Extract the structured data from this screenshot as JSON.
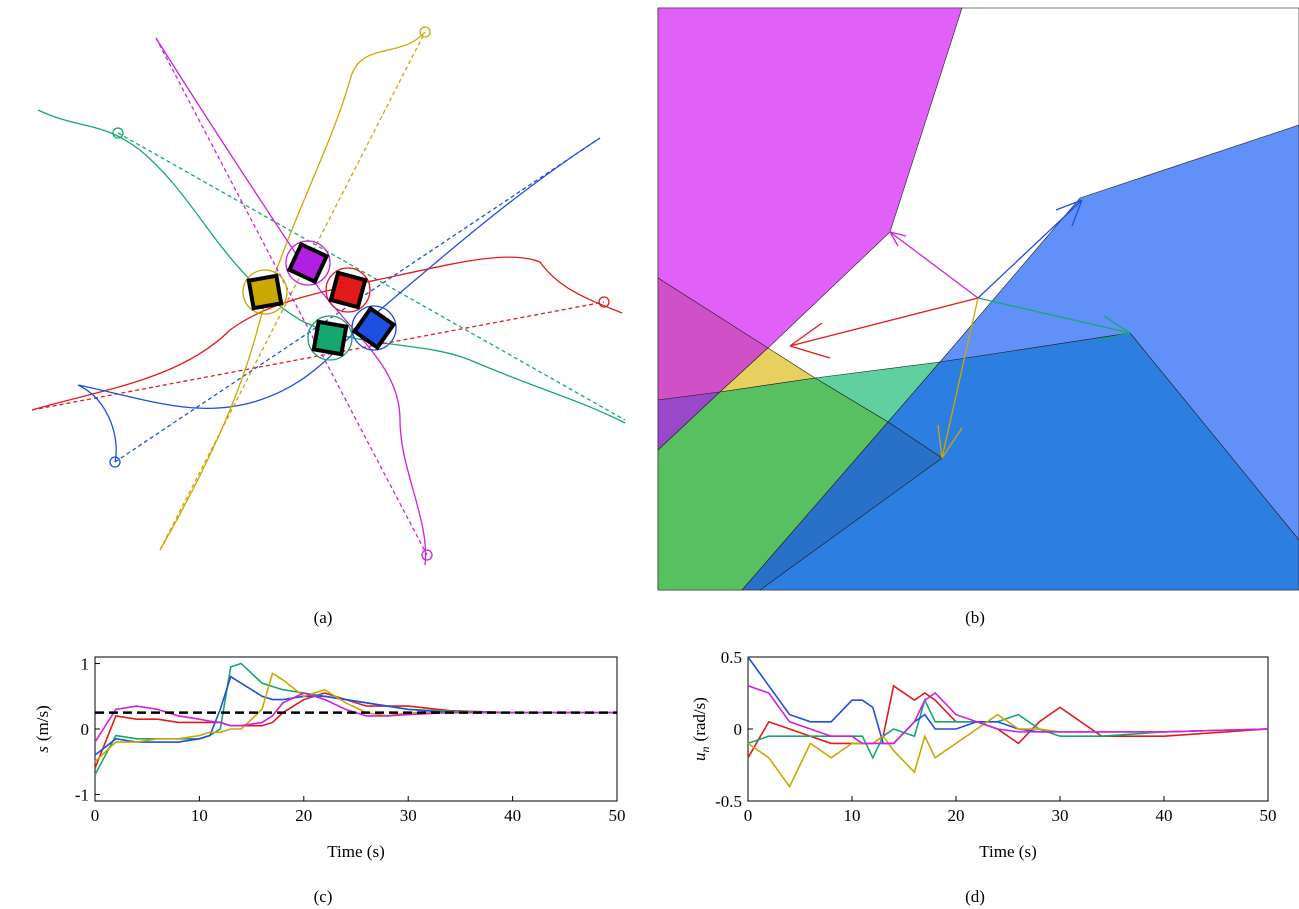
{
  "captions": [
    "(a)",
    "(b)",
    "(c)",
    "(d)"
  ],
  "chart_data": [
    {
      "type": "line",
      "xlabel": "Time (s)",
      "ylabel_symbol": "s",
      "ylabel_unit": "(m/s)",
      "x": [
        0,
        2,
        4,
        6,
        8,
        10,
        11,
        12,
        13,
        14,
        16,
        17,
        18,
        20,
        22,
        24,
        26,
        28,
        30,
        34,
        40,
        50
      ],
      "xlim": [
        0,
        50
      ],
      "xticks": [
        0,
        10,
        20,
        30,
        40,
        50
      ],
      "ylim": [
        -1.1,
        1.1
      ],
      "yticks": [
        -1,
        0,
        1
      ],
      "series": [
        {
          "color": "#e31a1c",
          "values": [
            -0.6,
            0.2,
            0.15,
            0.15,
            0.1,
            0.1,
            0.1,
            0.1,
            0.05,
            0.05,
            0.05,
            0.1,
            0.25,
            0.45,
            0.55,
            0.45,
            0.35,
            0.35,
            0.35,
            0.28,
            0.25,
            0.25
          ]
        },
        {
          "color": "#14a86e",
          "values": [
            -0.7,
            -0.1,
            -0.15,
            -0.15,
            -0.15,
            -0.15,
            -0.1,
            0.0,
            0.95,
            1.0,
            0.7,
            0.65,
            0.6,
            0.55,
            0.5,
            0.45,
            0.4,
            0.35,
            0.3,
            0.27,
            0.25,
            0.25
          ]
        },
        {
          "color": "#1f4fe0",
          "values": [
            -0.4,
            -0.15,
            -0.2,
            -0.2,
            -0.2,
            -0.15,
            -0.1,
            0.3,
            0.8,
            0.7,
            0.5,
            0.45,
            0.45,
            0.5,
            0.5,
            0.45,
            0.4,
            0.35,
            0.3,
            0.25,
            0.25,
            0.25
          ]
        },
        {
          "color": "#c9a800",
          "values": [
            -0.5,
            -0.2,
            -0.2,
            -0.15,
            -0.15,
            -0.1,
            -0.05,
            -0.05,
            0.0,
            0.0,
            0.3,
            0.85,
            0.75,
            0.5,
            0.6,
            0.4,
            0.25,
            0.2,
            0.25,
            0.25,
            0.25,
            0.25
          ]
        },
        {
          "color": "#d21fe0",
          "values": [
            -0.2,
            0.3,
            0.35,
            0.3,
            0.2,
            0.15,
            0.12,
            0.1,
            0.05,
            0.05,
            0.1,
            0.2,
            0.4,
            0.55,
            0.45,
            0.3,
            0.2,
            0.2,
            0.22,
            0.25,
            0.25,
            0.25
          ]
        },
        {
          "color": "#000000",
          "dash": true,
          "values": [
            0.25,
            0.25,
            0.25,
            0.25,
            0.25,
            0.25,
            0.25,
            0.25,
            0.25,
            0.25,
            0.25,
            0.25,
            0.25,
            0.25,
            0.25,
            0.25,
            0.25,
            0.25,
            0.25,
            0.25,
            0.25,
            0.25
          ]
        }
      ]
    },
    {
      "type": "line",
      "xlabel": "Time (s)",
      "ylabel_symbol": "u",
      "ylabel_subscript": "n",
      "ylabel_unit": "(rad/s)",
      "x": [
        0,
        2,
        4,
        6,
        8,
        10,
        11,
        12,
        13,
        14,
        16,
        17,
        18,
        20,
        22,
        24,
        26,
        28,
        30,
        34,
        40,
        50
      ],
      "xlim": [
        0,
        50
      ],
      "xticks": [
        0,
        10,
        20,
        30,
        40,
        50
      ],
      "ylim": [
        -0.5,
        0.5
      ],
      "yticks": [
        -0.5,
        0,
        0.5
      ],
      "series": [
        {
          "color": "#e31a1c",
          "values": [
            -0.2,
            0.05,
            0.0,
            -0.05,
            -0.1,
            -0.1,
            -0.1,
            -0.1,
            -0.05,
            0.3,
            0.2,
            0.25,
            0.2,
            0.05,
            0.05,
            0.0,
            -0.1,
            0.05,
            0.15,
            -0.05,
            -0.05,
            0.0
          ]
        },
        {
          "color": "#14a86e",
          "values": [
            -0.1,
            -0.05,
            -0.05,
            -0.05,
            -0.05,
            -0.05,
            -0.05,
            -0.2,
            -0.05,
            0.0,
            -0.05,
            0.2,
            0.05,
            0.05,
            0.05,
            0.05,
            0.1,
            0.0,
            -0.05,
            -0.05,
            -0.02,
            0.0
          ]
        },
        {
          "color": "#1f4fe0",
          "values": [
            0.5,
            0.3,
            0.1,
            0.05,
            0.05,
            0.2,
            0.2,
            0.15,
            -0.1,
            -0.1,
            0.05,
            0.1,
            0.0,
            0.0,
            0.05,
            0.05,
            0.0,
            -0.02,
            -0.02,
            -0.02,
            -0.02,
            0.0
          ]
        },
        {
          "color": "#c9a800",
          "values": [
            -0.1,
            -0.2,
            -0.4,
            -0.1,
            -0.2,
            -0.1,
            -0.1,
            -0.1,
            -0.05,
            -0.15,
            -0.3,
            -0.05,
            -0.2,
            -0.1,
            0.0,
            0.1,
            0.0,
            0.0,
            -0.02,
            -0.02,
            -0.02,
            0.0
          ]
        },
        {
          "color": "#d21fe0",
          "values": [
            0.3,
            0.25,
            0.05,
            0.0,
            -0.05,
            -0.05,
            -0.1,
            -0.1,
            -0.1,
            -0.1,
            0.05,
            0.2,
            0.25,
            0.1,
            0.05,
            0.0,
            -0.02,
            -0.02,
            -0.02,
            -0.02,
            -0.02,
            0.0
          ]
        }
      ]
    }
  ]
}
